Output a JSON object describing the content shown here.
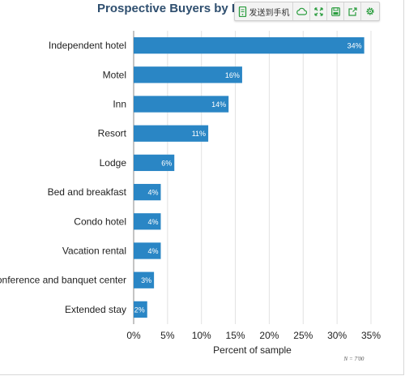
{
  "toolbar": {
    "send_label": "发送到手机",
    "icons": [
      "phone-send-icon",
      "cloud-icon",
      "fullscreen-icon",
      "save-icon",
      "share-icon",
      "settings-icon"
    ],
    "accent": "#2a9d3e"
  },
  "chart_data": {
    "type": "bar",
    "orientation": "horizontal",
    "title": "Prospective Buyers by Prop",
    "xlabel": "Percent of sample",
    "ylabel": "",
    "categories": [
      "Independent hotel",
      "Motel",
      "Inn",
      "Resort",
      "Lodge",
      "Bed and breakfast",
      "Condo hotel",
      "Vacation rental",
      "Conference and banquet center",
      "Extended stay"
    ],
    "values": [
      34,
      16,
      14,
      11,
      6,
      4,
      4,
      4,
      3,
      2
    ],
    "data_labels": [
      "34%",
      "16%",
      "14%",
      "11%",
      "6%",
      "4%",
      "4%",
      "4%",
      "3%",
      "2%"
    ],
    "xlim": [
      0,
      35
    ],
    "x_ticks": [
      0,
      5,
      10,
      15,
      20,
      25,
      30,
      35
    ],
    "x_tick_labels": [
      "0%",
      "5%",
      "10%",
      "15%",
      "20%",
      "25%",
      "30%",
      "35%"
    ],
    "grid": true,
    "legend": "none",
    "bar_color": "#2a86c5",
    "note": "N = 7'00"
  }
}
